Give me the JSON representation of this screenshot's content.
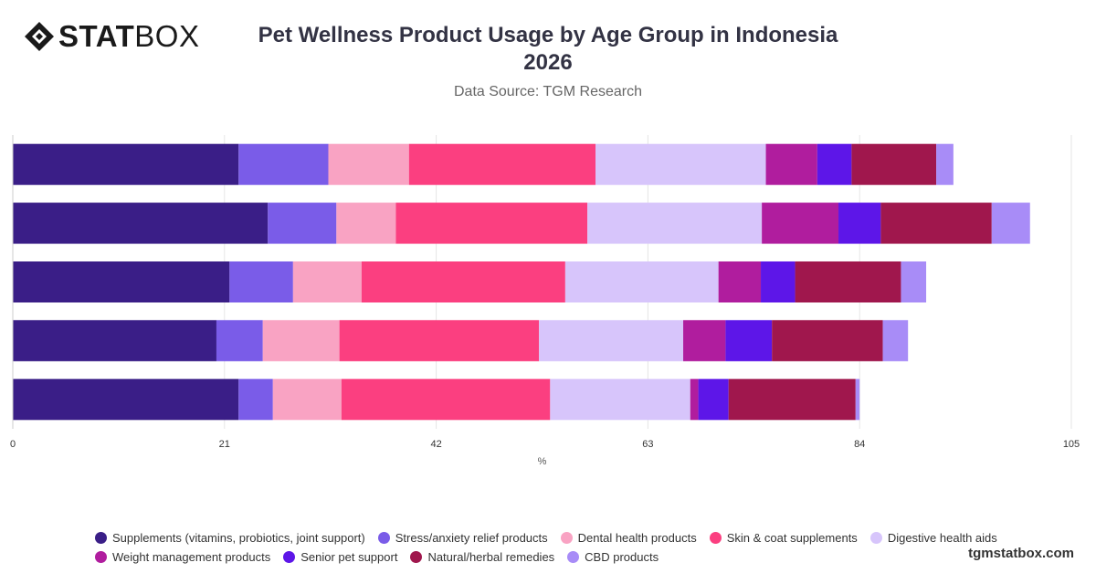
{
  "brand": {
    "logo_bold": "STAT",
    "logo_light": "BOX",
    "site": "tgmstatbox.com"
  },
  "header": {
    "title_line1": "Pet Wellness Product Usage by Age Group in Indonesia",
    "title_line2": "2026",
    "source": "Data Source: TGM Research"
  },
  "chart_data": {
    "type": "bar",
    "orientation": "horizontal",
    "stacked": true,
    "title": "Pet Wellness Product Usage by Age Group in Indonesia 2026",
    "subtitle": "Data Source: TGM Research",
    "xlabel": "%",
    "ylabel": "",
    "xlim": [
      0,
      105
    ],
    "xticks": [
      0,
      21,
      42,
      63,
      84,
      105
    ],
    "grid": true,
    "legend_position": "bottom",
    "categories": [
      "",
      "",
      "",
      "",
      ""
    ],
    "series": [
      {
        "name": "Supplements (vitamins, probiotics, joint support)",
        "color": "#3a1e87",
        "values": [
          22.4,
          25.3,
          21.5,
          20.2,
          22.4
        ]
      },
      {
        "name": "Stress/anxiety relief products",
        "color": "#7a5ce8",
        "values": [
          8.9,
          6.8,
          6.3,
          4.6,
          3.4
        ]
      },
      {
        "name": "Dental health products",
        "color": "#f9a3c3",
        "values": [
          8.0,
          5.9,
          6.8,
          7.6,
          6.8
        ]
      },
      {
        "name": "Skin & coat supplements",
        "color": "#fb3f80",
        "values": [
          18.5,
          19.0,
          20.2,
          19.8,
          20.7
        ]
      },
      {
        "name": "Digestive health aids",
        "color": "#d7c5fb",
        "values": [
          16.9,
          17.3,
          15.2,
          14.3,
          13.9
        ]
      },
      {
        "name": "Weight management products",
        "color": "#b01d9e",
        "values": [
          5.1,
          7.6,
          4.2,
          4.2,
          0.8
        ]
      },
      {
        "name": "Senior pet support",
        "color": "#5d16e8",
        "values": [
          3.4,
          4.2,
          3.4,
          4.6,
          3.0
        ]
      },
      {
        "name": "Natural/herbal remedies",
        "color": "#a0174d",
        "values": [
          8.4,
          11.0,
          10.5,
          11.0,
          12.6
        ]
      },
      {
        "name": "CBD products",
        "color": "#a88cf7",
        "values": [
          1.7,
          3.8,
          2.5,
          2.5,
          0.4
        ]
      }
    ]
  }
}
